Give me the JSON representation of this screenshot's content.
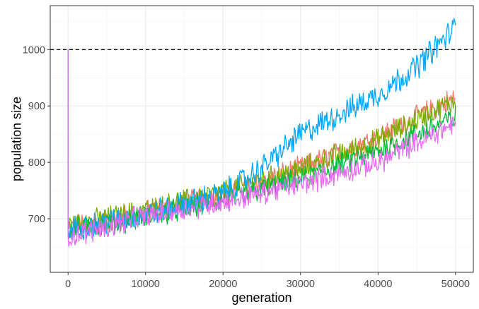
{
  "chart_data": {
    "type": "line",
    "xlabel": "generation",
    "ylabel": "population size",
    "xlim": [
      -2300,
      52300
    ],
    "ylim": [
      605,
      1078
    ],
    "x_ticks": [
      0,
      10000,
      20000,
      30000,
      40000,
      50000
    ],
    "x_tick_labels": [
      "0",
      "10000",
      "20000",
      "30000",
      "40000",
      "50000"
    ],
    "y_ticks": [
      700,
      800,
      900,
      1000
    ],
    "y_tick_labels": [
      "700",
      "800",
      "900",
      "1000"
    ],
    "reference_line": {
      "y": 1000,
      "style": "dashed",
      "color": "#000000"
    },
    "grid": true,
    "legend": "none",
    "x_step": 100,
    "series": [
      {
        "color": "#F8766D",
        "start": 1000,
        "drop": 685,
        "knots": [
          [
            0,
            685
          ],
          [
            10000,
            712
          ],
          [
            20000,
            745
          ],
          [
            30000,
            790
          ],
          [
            40000,
            845
          ],
          [
            50000,
            915
          ]
        ],
        "noise": 18
      },
      {
        "color": "#7CAE00",
        "start": 1000,
        "drop": 685,
        "knots": [
          [
            0,
            688
          ],
          [
            10000,
            715
          ],
          [
            20000,
            748
          ],
          [
            30000,
            788
          ],
          [
            40000,
            840
          ],
          [
            50000,
            910
          ]
        ],
        "noise": 18
      },
      {
        "color": "#00BA38",
        "start": 1000,
        "drop": 680,
        "knots": [
          [
            0,
            680
          ],
          [
            10000,
            703
          ],
          [
            20000,
            733
          ],
          [
            30000,
            770
          ],
          [
            40000,
            820
          ],
          [
            50000,
            880
          ]
        ],
        "noise": 18
      },
      {
        "color": "#00A9FF",
        "start": 1000,
        "drop": 680,
        "knots": [
          [
            0,
            680
          ],
          [
            10000,
            708
          ],
          [
            20000,
            745
          ],
          [
            25000,
            790
          ],
          [
            30000,
            850
          ],
          [
            40000,
            920
          ],
          [
            45000,
            970
          ],
          [
            50000,
            1040
          ]
        ],
        "noise": 20
      },
      {
        "color": "#E76BF3",
        "start": 1000,
        "drop": 668,
        "knots": [
          [
            0,
            668
          ],
          [
            10000,
            705
          ],
          [
            20000,
            730
          ],
          [
            30000,
            762
          ],
          [
            40000,
            800
          ],
          [
            50000,
            870
          ]
        ],
        "noise": 18
      }
    ]
  }
}
